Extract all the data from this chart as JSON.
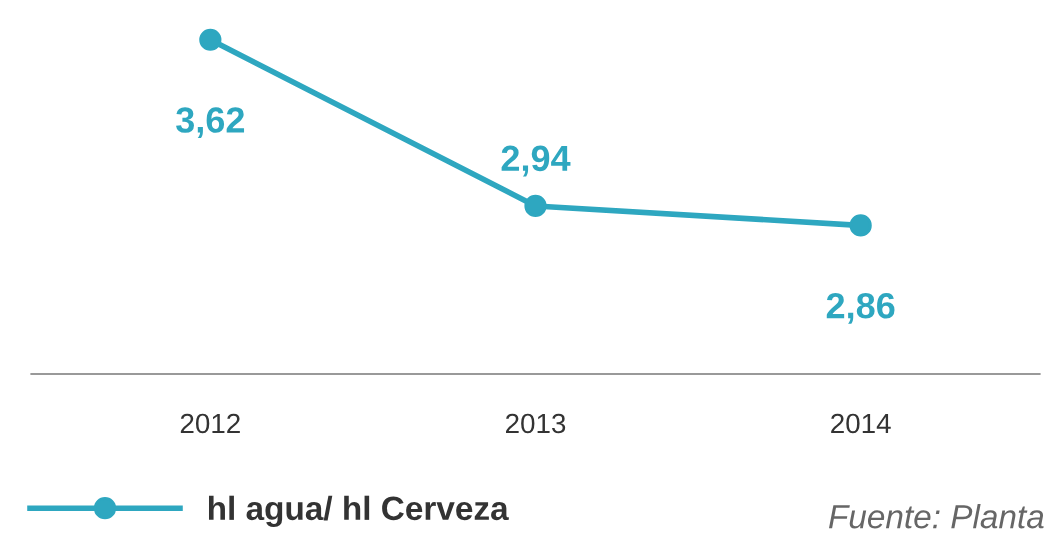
{
  "chart_data": {
    "type": "line",
    "categories": [
      "2012",
      "2013",
      "2014"
    ],
    "series": [
      {
        "name": "hl agua/ hl Cerveza",
        "color": "#2ea7c0",
        "values": [
          3.62,
          2.94,
          2.86
        ],
        "value_labels": [
          "3,62",
          "2,94",
          "2,86"
        ]
      }
    ],
    "tick_labels": "x",
    "marker": "circle",
    "line_style": "solid",
    "grid": false,
    "legend": "bottom left",
    "annotations": [
      "Fuente: Planta"
    ]
  }
}
